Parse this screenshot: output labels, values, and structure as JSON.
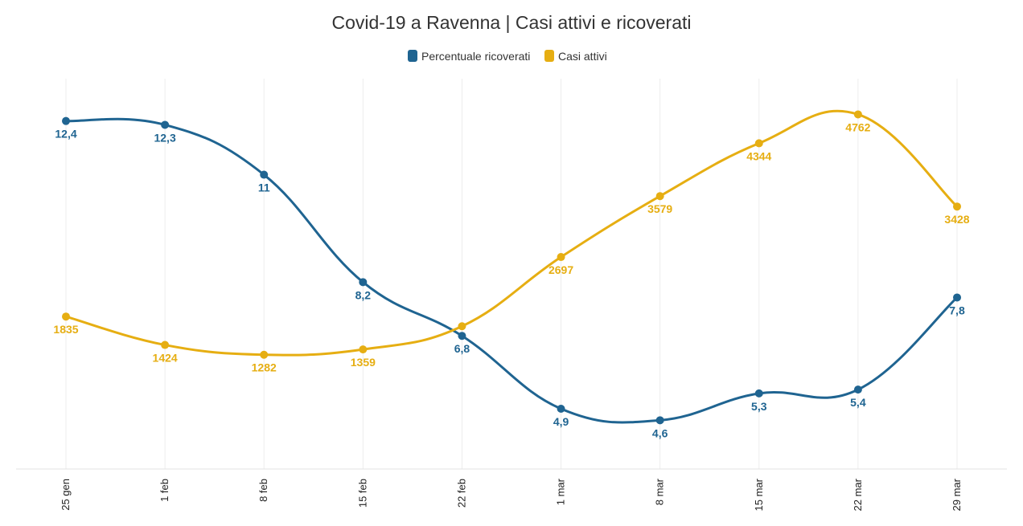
{
  "chart_data": {
    "type": "line",
    "title": "Covid-19 a Ravenna | Casi attivi e ricoverati",
    "xlabel": "",
    "ylabel": "",
    "categories": [
      "25 gen",
      "1 feb",
      "8 feb",
      "15 feb",
      "22 feb",
      "1 mar",
      "8 mar",
      "15 mar",
      "22 mar",
      "29 mar"
    ],
    "legend_position": "top-center",
    "grid": {
      "vertical": true,
      "horizontal": false
    },
    "series": [
      {
        "name": "Percentuale ricoverati",
        "color": "#1f6491",
        "values": [
          12.4,
          12.3,
          11,
          8.2,
          6.8,
          4.9,
          4.6,
          5.3,
          5.4,
          7.8
        ],
        "labels": [
          "12,4",
          "12,3",
          "11",
          "8,2",
          "6,8",
          "4,9",
          "4,6",
          "5,3",
          "5,4",
          "7,8"
        ],
        "ylim": [
          4,
          13
        ]
      },
      {
        "name": "Casi attivi",
        "color": "#e6ae12",
        "values": [
          1835,
          1424,
          1282,
          1359,
          1695,
          2697,
          3579,
          4344,
          4762,
          3428
        ],
        "labels": [
          "1835",
          "1424",
          "1282",
          "1359",
          "",
          "2697",
          "3579",
          "4344",
          "4762",
          "3428"
        ],
        "ylim": [
          0,
          5000
        ]
      }
    ]
  }
}
